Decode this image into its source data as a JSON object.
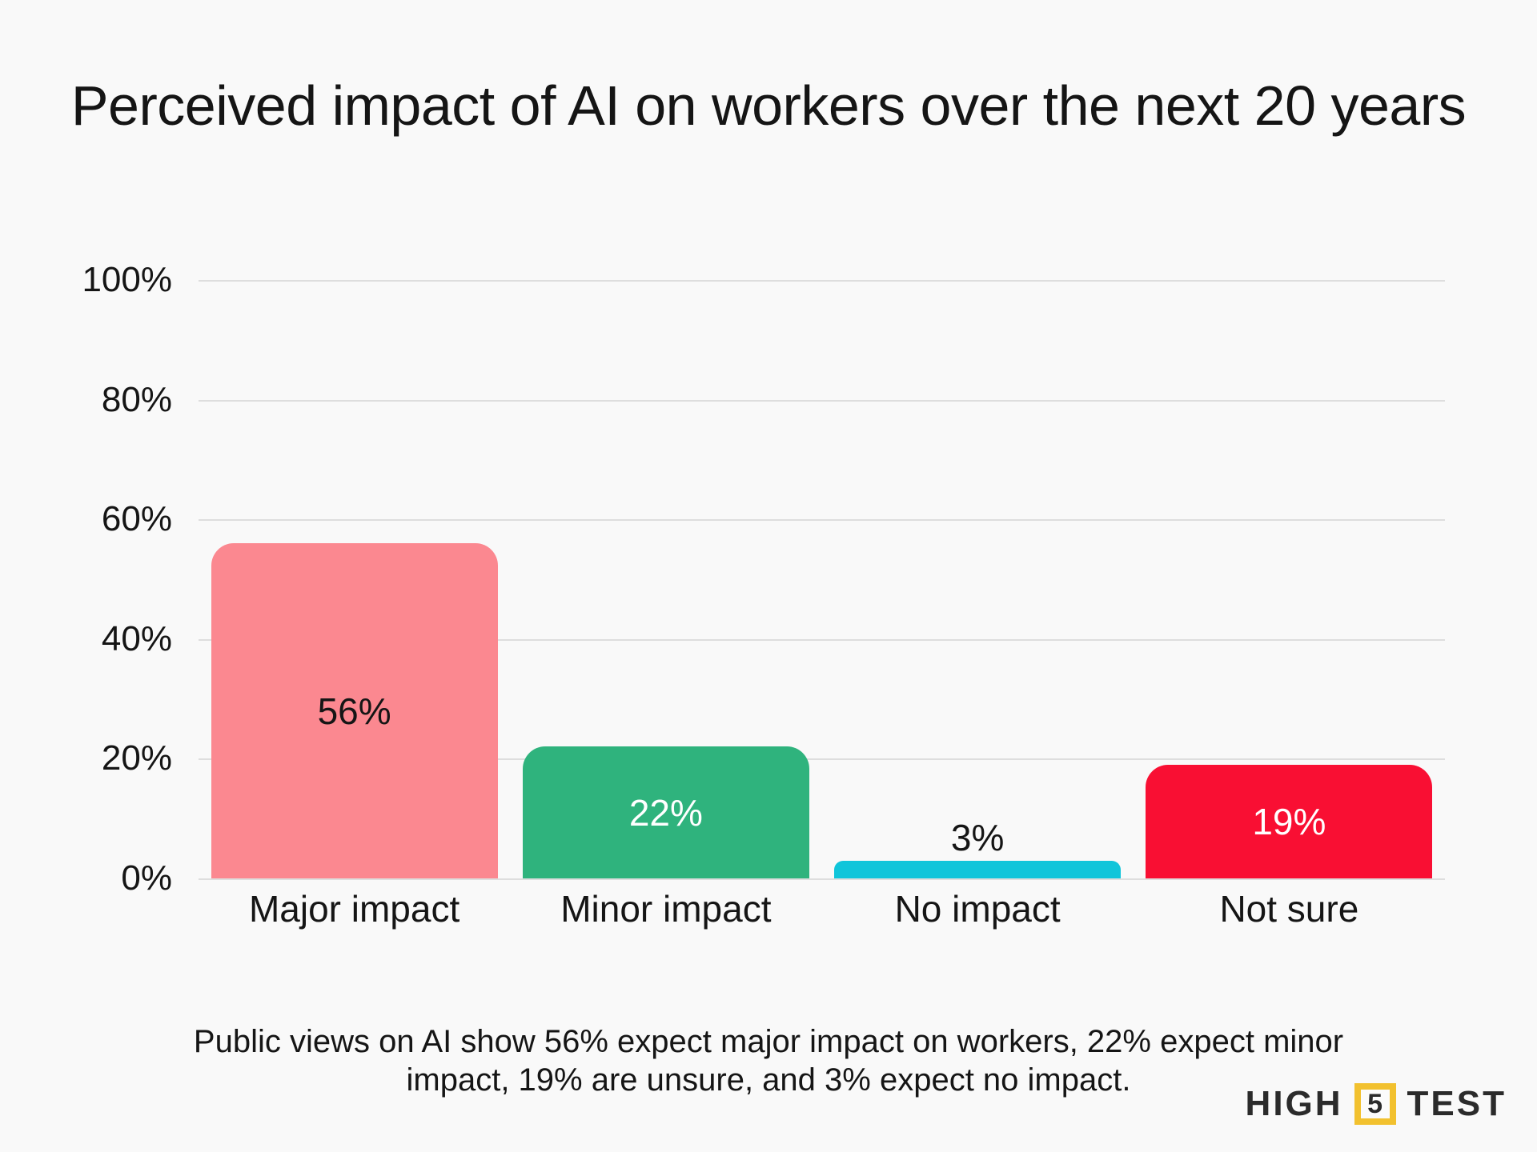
{
  "page": {
    "title": "Perceived impact of AI on workers over the next 20 years",
    "caption": "Public views on AI show 56% expect major impact on workers, 22% expect minor impact, 19% are unsure, and 3% expect no impact.",
    "background_color": "#f9f9f9",
    "text_color": "#151515"
  },
  "chart_data": {
    "type": "bar",
    "title": "Perceived impact of AI on workers over the next 20 years",
    "categories": [
      "Major impact",
      "Minor impact",
      "No impact",
      "Not sure"
    ],
    "values": [
      56,
      22,
      3,
      19
    ],
    "value_labels": [
      "56%",
      "22%",
      "3%",
      "19%"
    ],
    "bar_colors": [
      "#fb8890",
      "#2fb37d",
      "#10c5da",
      "#f90f33"
    ],
    "value_label_colors": [
      "#151515",
      "#ffffff",
      "#151515",
      "#ffffff"
    ],
    "value_label_placement": [
      "inside",
      "inside",
      "above",
      "inside"
    ],
    "xlabel": "",
    "ylabel": "",
    "ylim": [
      0,
      100
    ],
    "ytick_values": [
      0,
      20,
      40,
      60,
      80,
      100
    ],
    "ytick_labels": [
      "0%",
      "20%",
      "40%",
      "60%",
      "80%",
      "100%"
    ],
    "grid": "horizontal",
    "gridline_color": "#dedede",
    "legend_position": "none"
  },
  "logo": {
    "left_word": "HIGH",
    "number": "5",
    "right_word": "TEST",
    "accent_color": "#f2c12f"
  }
}
